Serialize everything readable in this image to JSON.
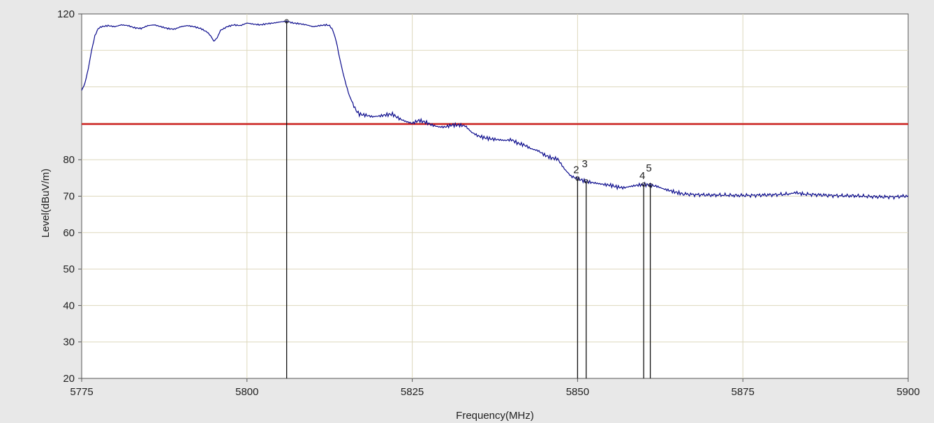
{
  "chart_data": {
    "type": "line",
    "title": "",
    "xlabel": "Frequency(MHz)",
    "ylabel": "Level(dBuV/m)",
    "xlim": [
      5775,
      5900
    ],
    "ylim": [
      20,
      120
    ],
    "grid": true,
    "x_ticks": [
      5775,
      5800,
      5825,
      5850,
      5875,
      5900
    ],
    "y_ticks": [
      20,
      30,
      40,
      50,
      60,
      70,
      80,
      120
    ],
    "series": [
      {
        "color": "#0a0a8c",
        "x": [
          5775,
          5775.5,
          5776,
          5776.5,
          5777,
          5777.5,
          5778,
          5779,
          5780,
          5781,
          5782,
          5783,
          5784,
          5785,
          5786,
          5787,
          5788,
          5789,
          5790,
          5791,
          5792,
          5793,
          5793.5,
          5794,
          5794.5,
          5795,
          5795.5,
          5796,
          5797,
          5798,
          5799,
          5800,
          5801,
          5802,
          5803,
          5804,
          5805,
          5806,
          5807,
          5808,
          5809,
          5810,
          5811,
          5812,
          5812.5,
          5813,
          5813.5,
          5814,
          5814.5,
          5815,
          5815.5,
          5816,
          5816.5,
          5817,
          5818,
          5819,
          5820,
          5821,
          5822,
          5823,
          5824,
          5825,
          5826,
          5827,
          5828,
          5829,
          5830,
          5831,
          5832,
          5833,
          5834,
          5835,
          5836,
          5837,
          5838,
          5839,
          5840,
          5841,
          5842,
          5843,
          5844,
          5845,
          5846,
          5847,
          5848,
          5849,
          5850,
          5851,
          5852,
          5853,
          5854,
          5855,
          5856,
          5857,
          5858,
          5859,
          5860,
          5861,
          5862,
          5863,
          5864,
          5865,
          5866,
          5868,
          5870,
          5872,
          5874,
          5876,
          5878,
          5880,
          5882,
          5883,
          5884,
          5886,
          5888,
          5890,
          5892,
          5894,
          5896,
          5898,
          5900
        ],
        "y": [
          99,
          101,
          105,
          110,
          114,
          116,
          116.5,
          116.8,
          116.5,
          117,
          116.8,
          116.2,
          116,
          116.8,
          117,
          116.5,
          116,
          115.8,
          116.5,
          116.8,
          116.5,
          116,
          115.5,
          115,
          114,
          112.5,
          113.5,
          115.5,
          116.5,
          117,
          116.8,
          117.5,
          117.2,
          117,
          117.3,
          117.5,
          117.8,
          118,
          117.5,
          117.3,
          117,
          116.5,
          116.8,
          117,
          116.8,
          115.5,
          112.5,
          108,
          104,
          100.5,
          97.5,
          95.5,
          93.5,
          92.5,
          92.2,
          91.8,
          92,
          92.3,
          92.5,
          91.3,
          90.5,
          90,
          90.8,
          90.3,
          89.5,
          89,
          89,
          89.5,
          89.5,
          89.3,
          87.5,
          86.5,
          86,
          85.7,
          85.5,
          85.3,
          85.5,
          84.5,
          84,
          83,
          82.5,
          81.3,
          80.5,
          80.2,
          77.5,
          75.5,
          74.8,
          74.2,
          73.8,
          73.5,
          73.2,
          73,
          72.5,
          72.3,
          72.7,
          73,
          73.2,
          73,
          72.7,
          72,
          71.5,
          71,
          70.6,
          70.4,
          70.3,
          70.3,
          70.2,
          70.2,
          70.3,
          70.4,
          70.6,
          71,
          70.6,
          70.4,
          70.2,
          70.1,
          70.1,
          69.9,
          69.8,
          69.8,
          70.1
        ]
      }
    ],
    "limit_line": {
      "value": 89.8,
      "color": "#cc1f1f"
    },
    "markers": [
      {
        "label": "",
        "x": 5806
      },
      {
        "label": "2",
        "x": 5850
      },
      {
        "label": "3",
        "x": 5851.3
      },
      {
        "label": "4",
        "x": 5860
      },
      {
        "label": "5",
        "x": 5861
      }
    ]
  }
}
